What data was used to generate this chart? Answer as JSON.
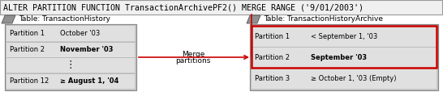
{
  "title": "ALTER PARTITION FUNCTION TransactionArchivePF2() MERGE RANGE ('9/01/2003')",
  "title_fontsize": 7.2,
  "red_border": "#cc0000",
  "red_arrow_color": "#cc0000",
  "left_table_label": "Table: TransactionHistory",
  "right_table_label": "Table: TransactionHistoryArchive",
  "left_rows": [
    [
      "Partition 1",
      "October '03",
      false
    ],
    [
      "Partition 2",
      "November '03",
      true
    ],
    [
      "⋮",
      "",
      false
    ],
    [
      "Partition 12",
      "≥ August 1, '04",
      true
    ]
  ],
  "right_rows": [
    [
      "Partition 1",
      "< September 1, '03",
      false
    ],
    [
      "Partition 2",
      "September '03",
      true
    ],
    [
      "Partition 3",
      "≥ October 1, '03 (Empty)",
      false
    ]
  ],
  "merge_label_line1": "Merge",
  "merge_label_line2": "partitions",
  "table_font_size": 6.0,
  "label_font_size": 6.5,
  "figw": 5.46,
  "figh": 1.29,
  "dpi": 100,
  "title_bar_color": "#f0f0f0",
  "title_bar_border": "#999999",
  "table_outer_fill": "#c8c8c8",
  "table_outer_border": "#888888",
  "row_fill": "#e0e0e0",
  "row_border": "#aaaaaa",
  "cylinder_fill": "#909090",
  "cylinder_border": "#555555"
}
